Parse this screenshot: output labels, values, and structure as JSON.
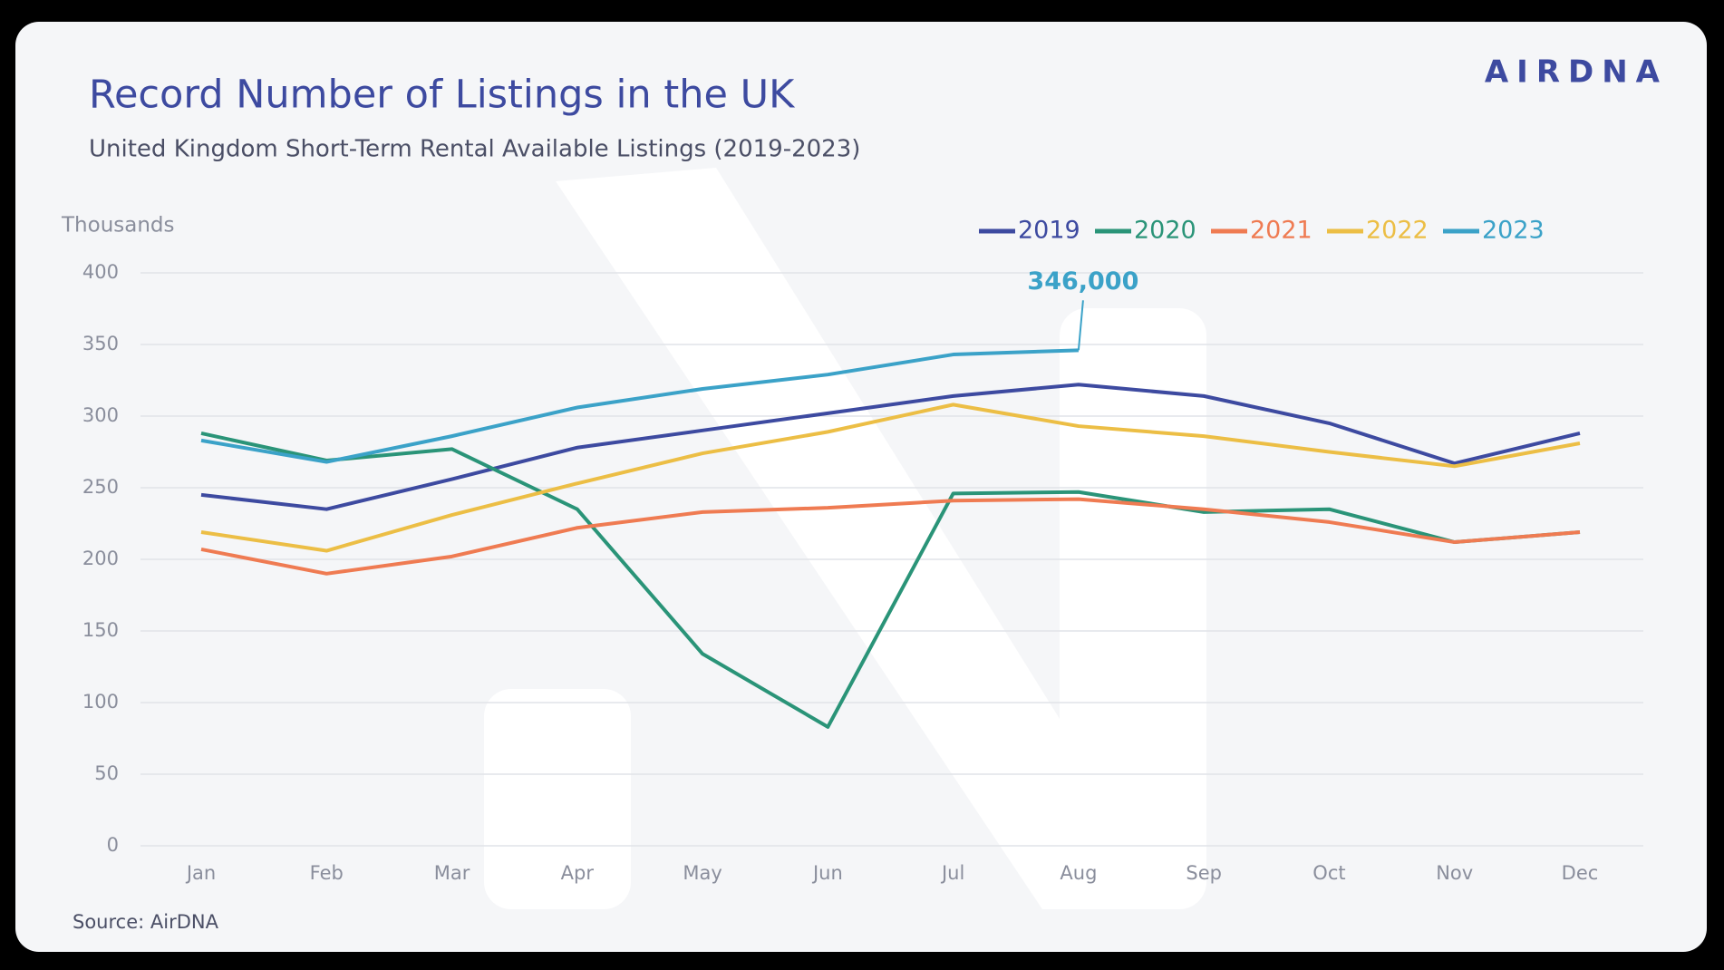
{
  "brand": "AIRDNA",
  "chart_data": {
    "type": "line",
    "title": "Record Number of Listings in the UK",
    "subtitle": "United Kingdom Short-Term Rental Available Listings (2019-2023)",
    "y_label": "Thousands",
    "source": "Source: AirDNA",
    "categories": [
      "Jan",
      "Feb",
      "Mar",
      "Apr",
      "May",
      "Jun",
      "Jul",
      "Aug",
      "Sep",
      "Oct",
      "Nov",
      "Dec"
    ],
    "series": [
      {
        "name": "2019",
        "color": "#3d4aa0",
        "values": [
          245,
          235,
          256,
          278,
          290,
          302,
          314,
          322,
          314,
          295,
          267,
          288
        ]
      },
      {
        "name": "2020",
        "color": "#2a9478",
        "values": [
          288,
          269,
          277,
          235,
          134,
          83,
          246,
          247,
          233,
          235,
          212,
          219
        ]
      },
      {
        "name": "2021",
        "color": "#ef7b52",
        "values": [
          207,
          190,
          202,
          222,
          233,
          236,
          241,
          242,
          235,
          226,
          212,
          219
        ]
      },
      {
        "name": "2022",
        "color": "#ecbe45",
        "values": [
          219,
          206,
          231,
          253,
          274,
          289,
          308,
          293,
          286,
          275,
          265,
          281
        ]
      },
      {
        "name": "2023",
        "color": "#3ba2c8",
        "values": [
          283,
          268,
          286,
          306,
          319,
          329,
          343,
          346,
          null,
          null,
          null,
          null
        ],
        "value_labels": [
          null,
          null,
          null,
          null,
          null,
          null,
          null,
          "346,000",
          null,
          null,
          null,
          null
        ]
      }
    ],
    "ylim": [
      0,
      400
    ],
    "yticks": [
      0,
      50,
      100,
      150,
      200,
      250,
      300,
      350,
      400
    ],
    "grid": true,
    "legend": "top-right"
  }
}
